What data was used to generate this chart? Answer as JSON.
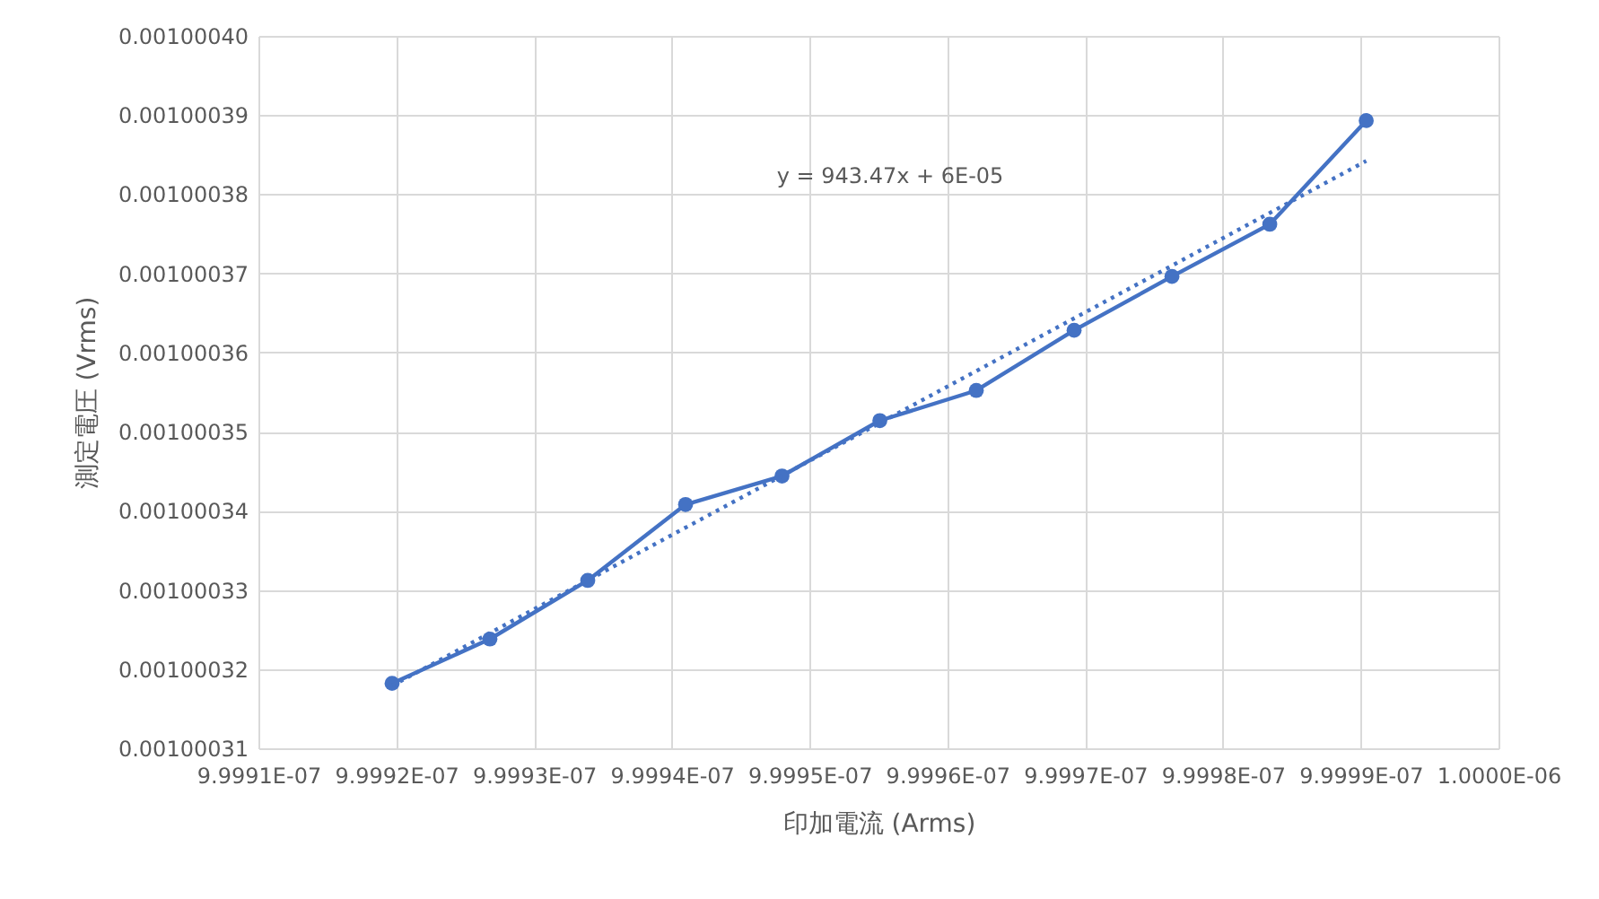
{
  "chart_data": {
    "type": "line",
    "xlabel": "印加電流 (Arms)",
    "ylabel": "測定電圧 (Vrms)",
    "xlim": [
      9.9991e-07,
      1e-06
    ],
    "xticks": [
      {
        "value": 9.9991e-07,
        "label": "9.9991E-07"
      },
      {
        "value": 9.9992e-07,
        "label": "9.9992E-07"
      },
      {
        "value": 9.9993e-07,
        "label": "9.9993E-07"
      },
      {
        "value": 9.9994e-07,
        "label": "9.9994E-07"
      },
      {
        "value": 9.9995e-07,
        "label": "9.9995E-07"
      },
      {
        "value": 9.9996e-07,
        "label": "9.9996E-07"
      },
      {
        "value": 9.9997e-07,
        "label": "9.9997E-07"
      },
      {
        "value": 9.9998e-07,
        "label": "9.9998E-07"
      },
      {
        "value": 9.9999e-07,
        "label": "9.9999E-07"
      },
      {
        "value": 1e-06,
        "label": "1.0000E-06"
      }
    ],
    "ylim": [
      0.00100031,
      0.0010004
    ],
    "yticks": [
      0.00100031,
      0.00100032,
      0.00100033,
      0.00100034,
      0.00100035,
      0.00100036,
      0.00100037,
      0.00100038,
      0.00100039,
      {
        "value": 0.0010004,
        "label": "0.00100040"
      }
    ],
    "grid": true,
    "marker": "circle",
    "line_style": "solid",
    "series": [
      {
        "color": "#4472c4",
        "x": [
          9.999197e-07,
          9.999268e-07,
          9.999339e-07,
          9.99941e-07,
          9.99948e-07,
          9.999551e-07,
          9.999621e-07,
          9.999692e-07,
          9.999763e-07,
          9.999834e-07,
          9.999904e-07
        ],
        "values": [
          0.0010003182,
          0.0010003238,
          0.0010003312,
          0.0010003408,
          0.0010003444,
          0.0010003514,
          0.0010003552,
          0.0010003628,
          0.0010003696,
          0.0010003762,
          0.0010003893
        ]
      },
      {
        "type": "line",
        "color": "#4472c4",
        "line_style": "dotted",
        "marker": "none",
        "x": [
          9.999197e-07,
          9.999904e-07
        ],
        "values": [
          0.0010003179,
          0.0010003842
        ]
      }
    ],
    "annotations": [
      "y = 943.47x + 6E-05"
    ]
  }
}
